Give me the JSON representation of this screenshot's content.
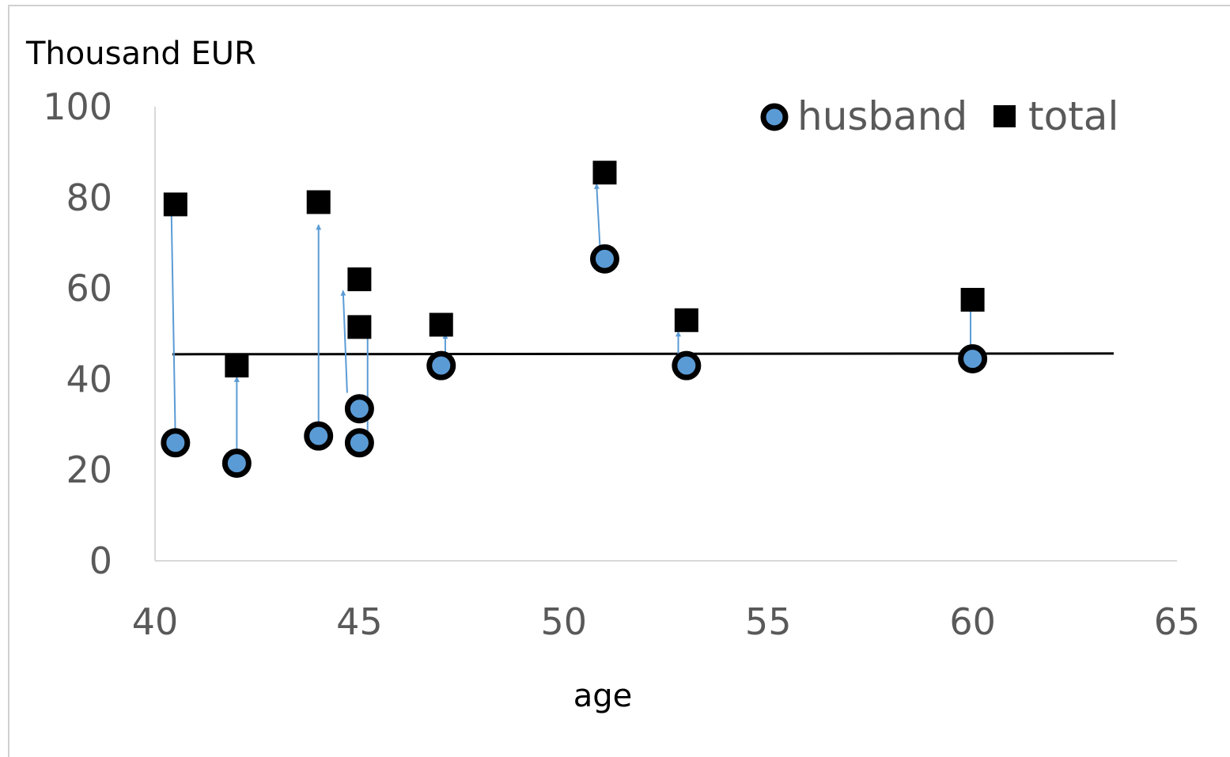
{
  "chart_data": {
    "type": "scatter",
    "title": "",
    "ylabel": "Thousand EUR",
    "xlabel": "age",
    "xlim": [
      40,
      65
    ],
    "ylim": [
      0,
      100
    ],
    "x_ticks": [
      "40",
      "45",
      "50",
      "55",
      "60",
      "65"
    ],
    "y_ticks": [
      "0",
      "20",
      "40",
      "60",
      "80",
      "100"
    ],
    "grid": false,
    "legend": {
      "position": "top-right",
      "entries": [
        "husband",
        "total"
      ]
    },
    "colors": {
      "husband_fill": "#5b9bd5",
      "husband_edge": "#000000",
      "total": "#000000",
      "arrow": "#5b9bd5",
      "reference_line": "#000000"
    },
    "reference_line_y": 45.5,
    "series": [
      {
        "name": "husband",
        "marker": "circle",
        "points": [
          {
            "x": 40.5,
            "y": 26
          },
          {
            "x": 42,
            "y": 21.5
          },
          {
            "x": 44,
            "y": 27.5
          },
          {
            "x": 45,
            "y": 33.5
          },
          {
            "x": 45,
            "y": 26
          },
          {
            "x": 47,
            "y": 43
          },
          {
            "x": 51,
            "y": 66.5
          },
          {
            "x": 53,
            "y": 43
          },
          {
            "x": 60,
            "y": 44.5
          }
        ]
      },
      {
        "name": "total",
        "marker": "square",
        "points": [
          {
            "x": 40.5,
            "y": 78.5
          },
          {
            "x": 42,
            "y": 43
          },
          {
            "x": 44,
            "y": 79
          },
          {
            "x": 45,
            "y": 62
          },
          {
            "x": 45,
            "y": 51.5
          },
          {
            "x": 47,
            "y": 52
          },
          {
            "x": 51,
            "y": 85.5
          },
          {
            "x": 53,
            "y": 53
          },
          {
            "x": 60,
            "y": 57.5
          }
        ]
      }
    ],
    "arrows": [
      {
        "from": {
          "x": 40.5,
          "y": 26
        },
        "to": {
          "x": 40.4,
          "y": 77
        }
      },
      {
        "from": {
          "x": 42,
          "y": 21.5
        },
        "to": {
          "x": 42,
          "y": 40.5
        }
      },
      {
        "from": {
          "x": 44,
          "y": 27.5
        },
        "to": {
          "x": 44,
          "y": 74
        }
      },
      {
        "from": {
          "x": 44.7,
          "y": 37
        },
        "to": {
          "x": 44.6,
          "y": 59.5
        }
      },
      {
        "from": {
          "x": 45.2,
          "y": 26
        },
        "to": {
          "x": 45.2,
          "y": 51
        }
      },
      {
        "from": {
          "x": 47.1,
          "y": 43
        },
        "to": {
          "x": 47.1,
          "y": 50
        }
      },
      {
        "from": {
          "x": 50.9,
          "y": 66.5
        },
        "to": {
          "x": 50.8,
          "y": 83
        }
      },
      {
        "from": {
          "x": 52.8,
          "y": 43
        },
        "to": {
          "x": 52.8,
          "y": 50.5
        }
      },
      {
        "from": {
          "x": 59.95,
          "y": 44.5
        },
        "to": {
          "x": 59.95,
          "y": 56
        }
      }
    ]
  }
}
